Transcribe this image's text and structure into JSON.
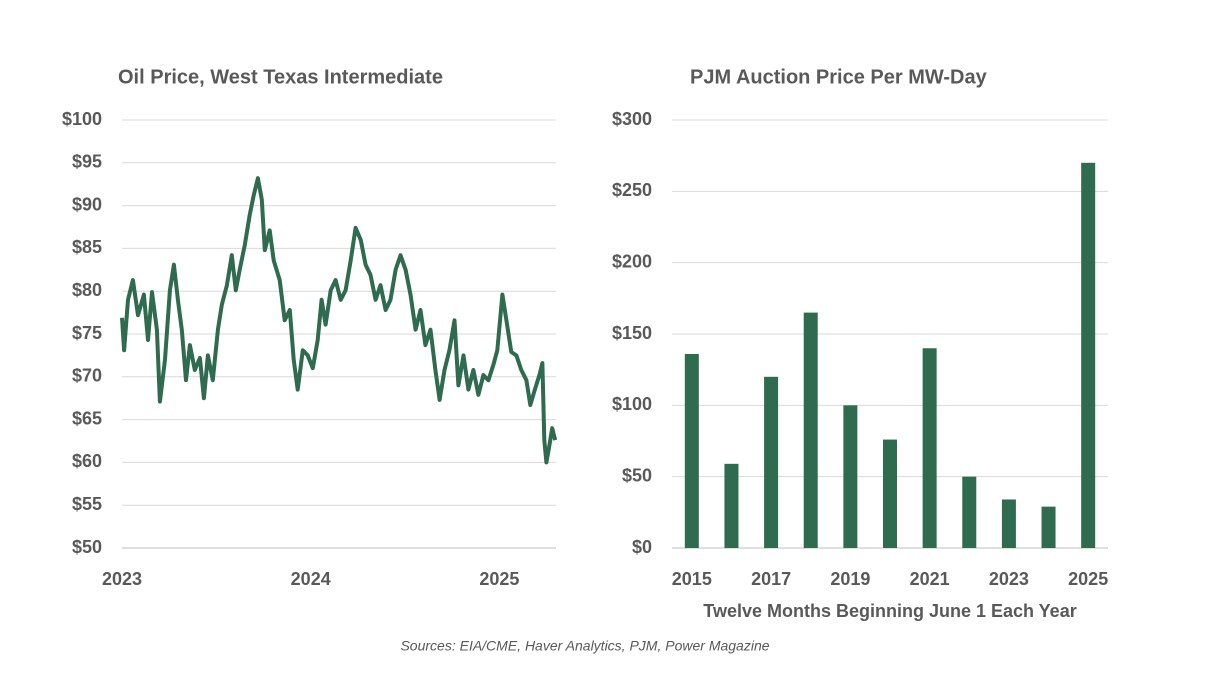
{
  "chart_data": [
    {
      "type": "line",
      "title": "Oil Price, West Texas Intermediate",
      "color": "#2f6b4e",
      "x": [
        2023.0,
        2023.011,
        2023.032,
        2023.058,
        2023.085,
        2023.116,
        2023.138,
        2023.159,
        2023.185,
        2023.201,
        2023.228,
        2023.254,
        2023.275,
        2023.296,
        2023.317,
        2023.339,
        2023.36,
        2023.386,
        2023.413,
        2023.434,
        2023.455,
        2023.481,
        2023.508,
        2023.529,
        2023.556,
        2023.582,
        2023.603,
        2023.624,
        2023.651,
        2023.677,
        2023.698,
        2023.72,
        2023.741,
        2023.757,
        2023.783,
        2023.804,
        2023.836,
        2023.862,
        2023.889,
        2023.91,
        2023.931,
        2023.958,
        2023.984,
        2024.011,
        2024.037,
        2024.058,
        2024.079,
        2024.106,
        2024.132,
        2024.159,
        2024.185,
        2024.212,
        2024.238,
        2024.265,
        2024.291,
        2024.317,
        2024.344,
        2024.37,
        2024.397,
        2024.423,
        2024.45,
        2024.476,
        2024.503,
        2024.529,
        2024.556,
        2024.582,
        2024.608,
        2024.635,
        2024.661,
        2024.683,
        2024.709,
        2024.735,
        2024.762,
        2024.783,
        2024.81,
        2024.836,
        2024.862,
        2024.889,
        2024.915,
        2024.942,
        2024.968,
        2024.989,
        2025.016,
        2025.037,
        2025.063,
        2025.09,
        2025.116,
        2025.143,
        2025.164,
        2025.185,
        2025.212,
        2025.228,
        2025.238,
        2025.249,
        2025.265,
        2025.28,
        2025.296
      ],
      "values": [
        76.9,
        73.1,
        79.0,
        81.3,
        77.2,
        79.6,
        74.3,
        79.9,
        75.5,
        67.1,
        72.0,
        80.1,
        83.1,
        79.0,
        75.5,
        69.6,
        73.7,
        70.8,
        72.2,
        67.5,
        72.5,
        69.6,
        75.5,
        78.4,
        80.7,
        84.2,
        80.1,
        82.5,
        85.4,
        88.9,
        91.2,
        93.2,
        90.7,
        84.8,
        87.1,
        83.6,
        81.3,
        76.6,
        77.8,
        72.0,
        68.5,
        73.1,
        72.5,
        71.0,
        74.3,
        79.0,
        76.1,
        80.1,
        81.3,
        79.0,
        80.1,
        83.6,
        87.4,
        86.0,
        83.1,
        81.9,
        79.0,
        80.7,
        77.8,
        79.0,
        82.5,
        84.2,
        82.5,
        79.6,
        75.5,
        77.8,
        73.7,
        75.5,
        70.8,
        67.3,
        70.8,
        73.1,
        76.6,
        69.0,
        72.5,
        68.5,
        70.8,
        67.9,
        70.2,
        69.6,
        71.4,
        73.1,
        79.6,
        76.6,
        72.9,
        72.5,
        70.8,
        69.6,
        66.7,
        68.3,
        70.2,
        71.6,
        62.6,
        60.0,
        62.0,
        64.0,
        62.6
      ],
      "xlim": [
        2023,
        2025.3
      ],
      "xticks": [
        2023,
        2024,
        2025
      ],
      "ylim": [
        50,
        100
      ],
      "yticks": [
        {
          "value": 50,
          "label": "$50"
        },
        {
          "value": 55,
          "label": "$55"
        },
        {
          "value": 60,
          "label": "$60"
        },
        {
          "value": 65,
          "label": "$65"
        },
        {
          "value": 70,
          "label": "$70"
        },
        {
          "value": 75,
          "label": "$75"
        },
        {
          "value": 80,
          "label": "$80"
        },
        {
          "value": 85,
          "label": "$85"
        },
        {
          "value": 90,
          "label": "$90"
        },
        {
          "value": 95,
          "label": "$95"
        },
        {
          "value": 100,
          "label": "$100"
        }
      ],
      "grid": true
    },
    {
      "type": "bar",
      "title": "PJM Auction Price Per MW-Day",
      "color": "#2f6b4e",
      "x_label": "Twelve Months Beginning June 1 Each Year",
      "categories": [
        "2015",
        null,
        "2017",
        null,
        "2019",
        null,
        "2021",
        null,
        "2023",
        null,
        "2025"
      ],
      "values": [
        136,
        59,
        120,
        165,
        100,
        76,
        140,
        50,
        34,
        29,
        270
      ],
      "ylim": [
        0,
        300
      ],
      "yticks": [
        {
          "value": 0,
          "label": "$0"
        },
        {
          "value": 50,
          "label": "$50"
        },
        {
          "value": 100,
          "label": "$100"
        },
        {
          "value": 150,
          "label": "$150"
        },
        {
          "value": 200,
          "label": "$200"
        },
        {
          "value": 250,
          "label": "$250"
        },
        {
          "value": 300,
          "label": "$300"
        }
      ],
      "grid": true
    }
  ],
  "source": "Sources: EIA/CME, Haver Analytics, PJM, Power Magazine"
}
